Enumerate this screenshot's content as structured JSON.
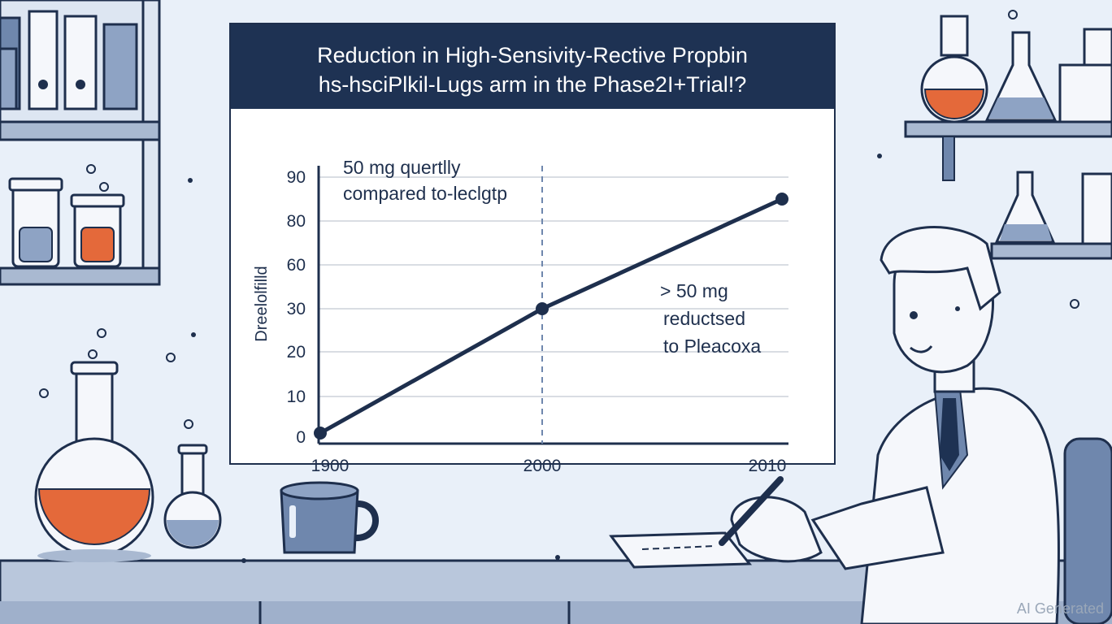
{
  "colors": {
    "background": "#e9f0f9",
    "navy": "#1e3253",
    "line": "#1e2f4d",
    "accent_orange": "#e4693a",
    "steel_blue": "#6f87ad",
    "grid": "#d9dde3"
  },
  "board": {
    "title_line1": "Reduction in High-Sensivity-Rective Propbin",
    "title_line2": "hs-hsciPlkil-Lugs arm in the Phase2I+Trial!?"
  },
  "chart_data": {
    "type": "line",
    "title": "Reduction in High-Sensivity-Rective Propbin",
    "subtitle": "hs-hsciPlkil-Lugs arm in the Phase2I+Trial!?",
    "ylabel": "Dreelolfilld",
    "xlabel": "",
    "x_ticks": [
      "1900",
      "2000",
      "2010"
    ],
    "y_ticks": [
      0,
      10,
      20,
      30,
      60,
      80,
      90
    ],
    "grid": true,
    "series": [
      {
        "name": "trend",
        "points": [
          {
            "x": "1900",
            "y": 1
          },
          {
            "x": "2000",
            "y": 30
          },
          {
            "x": "2010",
            "y": 85
          }
        ]
      }
    ],
    "reference_line_at": "2000",
    "annotations": [
      {
        "lines": [
          "50 mg quertlly",
          "compared to-leclgtp"
        ]
      },
      {
        "lines": [
          "> 50 mg",
          "reductsed",
          "to Pleacoxa"
        ]
      }
    ]
  },
  "watermark": "AI Generated"
}
